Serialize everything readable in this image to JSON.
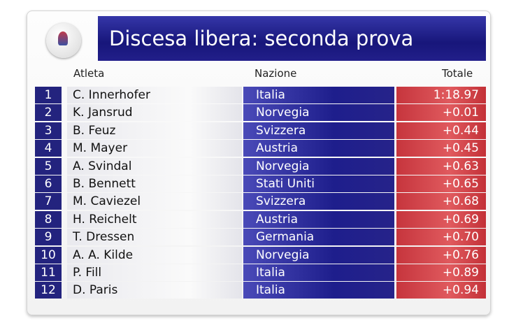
{
  "header": {
    "title": "Discesa libera: seconda prova"
  },
  "columns": {
    "athlete": "Atleta",
    "nation": "Nazione",
    "total": "Totale"
  },
  "table": {
    "rows": [
      [
        1,
        "C. Innerhofer",
        "Italia",
        "1:18.97"
      ],
      [
        2,
        "K. Jansrud",
        "Norvegia",
        "+0.01"
      ],
      [
        3,
        "B. Feuz",
        "Svizzera",
        "+0.44"
      ],
      [
        4,
        "M. Mayer",
        "Austria",
        "+0.45"
      ],
      [
        5,
        "A. Svindal",
        "Norvegia",
        "+0.63"
      ],
      [
        6,
        "B. Bennett",
        "Stati Uniti",
        "+0.65"
      ],
      [
        7,
        "M. Caviezel",
        "Svizzera",
        "+0.68"
      ],
      [
        8,
        "H. Reichelt",
        "Austria",
        "+0.69"
      ],
      [
        9,
        "T. Dressen",
        "Germania",
        "+0.70"
      ],
      [
        10,
        "A. A. Kilde",
        "Norvegia",
        "+0.76"
      ],
      [
        11,
        "P. Fill",
        "Italia",
        "+0.89"
      ],
      [
        12,
        "D. Paris",
        "Italia",
        "+0.94"
      ]
    ]
  }
}
